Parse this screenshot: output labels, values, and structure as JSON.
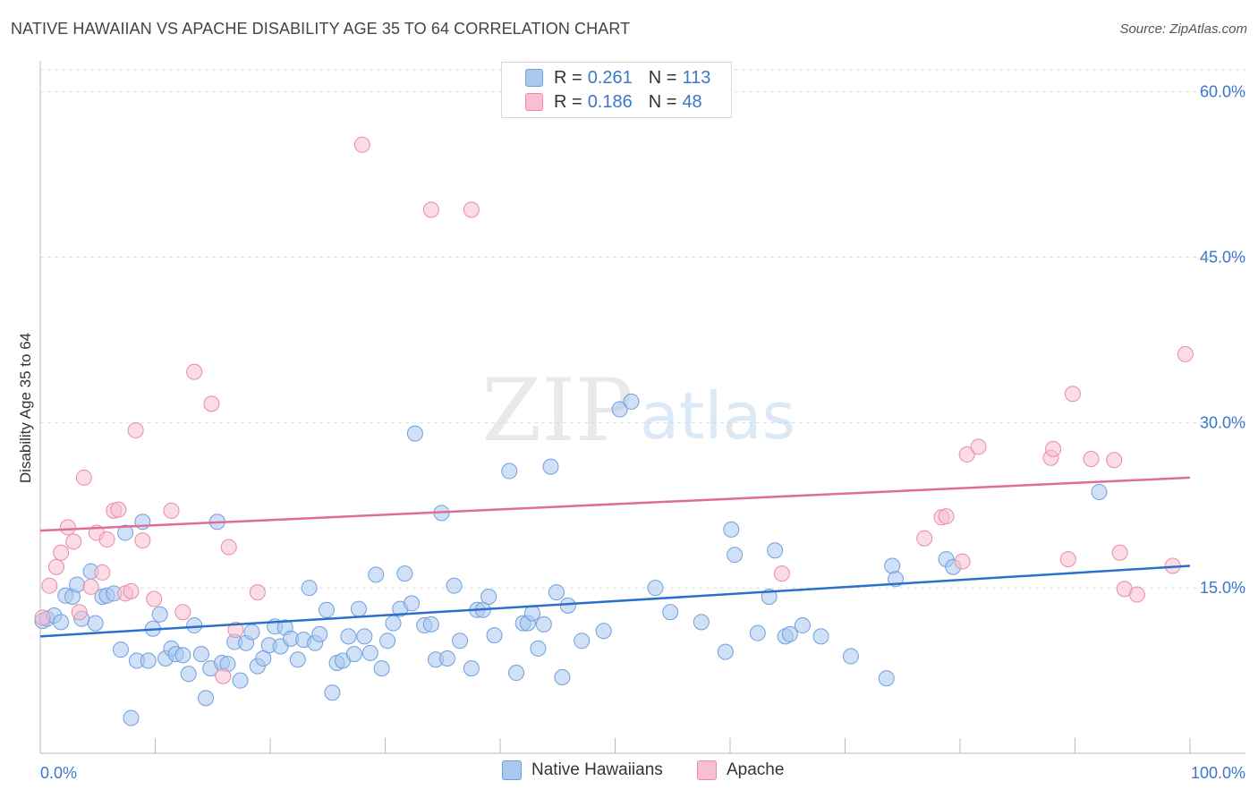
{
  "title": "NATIVE HAWAIIAN VS APACHE DISABILITY AGE 35 TO 64 CORRELATION CHART",
  "source": "Source: ZipAtlas.com",
  "watermark": {
    "zip": "ZIP",
    "atlas": "atlas"
  },
  "legend": {
    "rows": [
      {
        "r_label": "R =",
        "r_value": "0.261",
        "n_label": "N =",
        "n_value": "113"
      },
      {
        "r_label": "R =",
        "r_value": "0.186",
        "n_label": "N =",
        "n_value": "48"
      }
    ]
  },
  "bottom_legend": [
    {
      "label": "Native Hawaiians"
    },
    {
      "label": "Apache"
    }
  ],
  "colors": {
    "blue_fill": "#a9c8f0",
    "blue_stroke": "#6f9fdc",
    "blue_line": "#2a6fcc",
    "pink_fill": "#f7bfd0",
    "pink_stroke": "#e98aa8",
    "pink_line": "#e06e94",
    "tick_label": "#3a78c9",
    "grid": "#dddddd"
  },
  "chart_data": {
    "type": "scatter",
    "title": "NATIVE HAWAIIAN VS APACHE DISABILITY AGE 35 TO 64 CORRELATION CHART",
    "xlabel": "",
    "ylabel": "Disability Age 35 to 64",
    "xlim": [
      0,
      100
    ],
    "ylim": [
      0,
      62
    ],
    "x_tick_labels": [
      "0.0%",
      "100.0%"
    ],
    "y_ticks": [
      15,
      30,
      45,
      60
    ],
    "y_tick_labels": [
      "15.0%",
      "30.0%",
      "45.0%",
      "60.0%"
    ],
    "grid": true,
    "legend_position": "top-center",
    "series": [
      {
        "name": "Native Hawaiians",
        "r": 0.261,
        "n": 113,
        "trend": {
          "x": [
            0,
            100
          ],
          "y": [
            10.6,
            17.0
          ]
        },
        "points": [
          [
            0.2,
            12.0
          ],
          [
            0.6,
            12.2
          ],
          [
            1.2,
            12.5
          ],
          [
            1.8,
            11.9
          ],
          [
            2.2,
            14.3
          ],
          [
            2.8,
            14.2
          ],
          [
            3.2,
            15.3
          ],
          [
            3.6,
            12.2
          ],
          [
            4.4,
            16.5
          ],
          [
            4.8,
            11.8
          ],
          [
            5.4,
            14.2
          ],
          [
            5.8,
            14.3
          ],
          [
            6.4,
            14.5
          ],
          [
            7.0,
            9.4
          ],
          [
            7.4,
            20.0
          ],
          [
            7.9,
            3.2
          ],
          [
            8.4,
            8.4
          ],
          [
            8.9,
            21.0
          ],
          [
            9.4,
            8.4
          ],
          [
            9.8,
            11.3
          ],
          [
            10.4,
            12.6
          ],
          [
            10.9,
            8.6
          ],
          [
            11.4,
            9.5
          ],
          [
            11.8,
            9.0
          ],
          [
            12.4,
            8.9
          ],
          [
            12.9,
            7.2
          ],
          [
            13.4,
            11.6
          ],
          [
            14.0,
            9.0
          ],
          [
            14.4,
            5.0
          ],
          [
            14.8,
            7.7
          ],
          [
            15.4,
            21.0
          ],
          [
            15.8,
            8.2
          ],
          [
            16.3,
            8.1
          ],
          [
            16.9,
            10.1
          ],
          [
            17.4,
            6.6
          ],
          [
            17.9,
            10.0
          ],
          [
            18.4,
            11.0
          ],
          [
            18.9,
            7.9
          ],
          [
            19.4,
            8.6
          ],
          [
            19.9,
            9.8
          ],
          [
            20.4,
            11.5
          ],
          [
            20.9,
            9.7
          ],
          [
            21.3,
            11.4
          ],
          [
            21.8,
            10.4
          ],
          [
            22.4,
            8.5
          ],
          [
            22.9,
            10.3
          ],
          [
            23.4,
            15.0
          ],
          [
            23.9,
            10.0
          ],
          [
            24.3,
            10.8
          ],
          [
            24.9,
            13.0
          ],
          [
            25.4,
            5.5
          ],
          [
            25.8,
            8.2
          ],
          [
            26.3,
            8.4
          ],
          [
            26.8,
            10.6
          ],
          [
            27.3,
            9.0
          ],
          [
            27.7,
            13.1
          ],
          [
            28.2,
            10.6
          ],
          [
            28.7,
            9.1
          ],
          [
            29.2,
            16.2
          ],
          [
            29.7,
            7.7
          ],
          [
            30.2,
            10.2
          ],
          [
            30.7,
            11.8
          ],
          [
            31.3,
            13.1
          ],
          [
            31.7,
            16.3
          ],
          [
            32.3,
            13.6
          ],
          [
            32.6,
            29.0
          ],
          [
            33.4,
            11.6
          ],
          [
            34.0,
            11.7
          ],
          [
            34.4,
            8.5
          ],
          [
            34.9,
            21.8
          ],
          [
            35.4,
            8.6
          ],
          [
            36.0,
            15.2
          ],
          [
            36.5,
            10.2
          ],
          [
            37.5,
            7.7
          ],
          [
            38.0,
            13.0
          ],
          [
            38.5,
            13.0
          ],
          [
            39.0,
            14.2
          ],
          [
            39.5,
            10.7
          ],
          [
            40.8,
            25.6
          ],
          [
            41.4,
            7.3
          ],
          [
            42.0,
            11.8
          ],
          [
            42.4,
            11.8
          ],
          [
            42.8,
            12.7
          ],
          [
            43.3,
            9.5
          ],
          [
            43.8,
            11.7
          ],
          [
            44.4,
            26.0
          ],
          [
            44.9,
            14.6
          ],
          [
            45.4,
            6.9
          ],
          [
            45.9,
            13.4
          ],
          [
            47.1,
            10.2
          ],
          [
            49.0,
            11.1
          ],
          [
            50.4,
            31.2
          ],
          [
            51.4,
            31.9
          ],
          [
            53.5,
            15.0
          ],
          [
            54.8,
            12.8
          ],
          [
            57.5,
            11.9
          ],
          [
            59.6,
            9.2
          ],
          [
            60.1,
            20.3
          ],
          [
            60.4,
            18.0
          ],
          [
            62.4,
            10.9
          ],
          [
            63.4,
            14.2
          ],
          [
            63.9,
            18.4
          ],
          [
            64.8,
            10.6
          ],
          [
            65.2,
            10.8
          ],
          [
            66.3,
            11.6
          ],
          [
            67.9,
            10.6
          ],
          [
            70.5,
            8.8
          ],
          [
            73.6,
            6.8
          ],
          [
            74.1,
            17.0
          ],
          [
            74.4,
            15.8
          ],
          [
            78.8,
            17.6
          ],
          [
            79.4,
            16.9
          ],
          [
            92.1,
            23.7
          ]
        ]
      },
      {
        "name": "Apache",
        "r": 0.186,
        "n": 48,
        "trend": {
          "x": [
            0,
            100
          ],
          "y": [
            20.2,
            25.0
          ]
        },
        "points": [
          [
            0.2,
            12.3
          ],
          [
            0.8,
            15.2
          ],
          [
            1.4,
            16.9
          ],
          [
            1.8,
            18.2
          ],
          [
            2.4,
            20.5
          ],
          [
            2.9,
            19.2
          ],
          [
            3.4,
            12.8
          ],
          [
            3.8,
            25.0
          ],
          [
            4.4,
            15.1
          ],
          [
            4.9,
            20.0
          ],
          [
            5.4,
            16.4
          ],
          [
            5.8,
            19.4
          ],
          [
            6.4,
            22.0
          ],
          [
            6.8,
            22.1
          ],
          [
            7.4,
            14.5
          ],
          [
            7.9,
            14.7
          ],
          [
            8.3,
            29.3
          ],
          [
            8.9,
            19.3
          ],
          [
            9.9,
            14.0
          ],
          [
            11.4,
            22.0
          ],
          [
            12.4,
            12.8
          ],
          [
            13.4,
            34.6
          ],
          [
            14.9,
            31.7
          ],
          [
            15.9,
            7.0
          ],
          [
            16.4,
            18.7
          ],
          [
            17.0,
            11.2
          ],
          [
            18.9,
            14.6
          ],
          [
            28.0,
            55.2
          ],
          [
            34.0,
            49.3
          ],
          [
            37.5,
            49.3
          ],
          [
            64.5,
            16.3
          ],
          [
            76.9,
            19.5
          ],
          [
            78.4,
            21.4
          ],
          [
            78.8,
            21.5
          ],
          [
            80.2,
            17.4
          ],
          [
            80.6,
            27.1
          ],
          [
            81.6,
            27.8
          ],
          [
            87.9,
            26.8
          ],
          [
            88.1,
            27.6
          ],
          [
            89.4,
            17.6
          ],
          [
            89.8,
            32.6
          ],
          [
            91.4,
            26.7
          ],
          [
            93.4,
            26.6
          ],
          [
            93.9,
            18.2
          ],
          [
            94.3,
            14.9
          ],
          [
            95.4,
            14.4
          ],
          [
            98.5,
            17.0
          ],
          [
            99.6,
            36.2
          ]
        ]
      }
    ]
  }
}
